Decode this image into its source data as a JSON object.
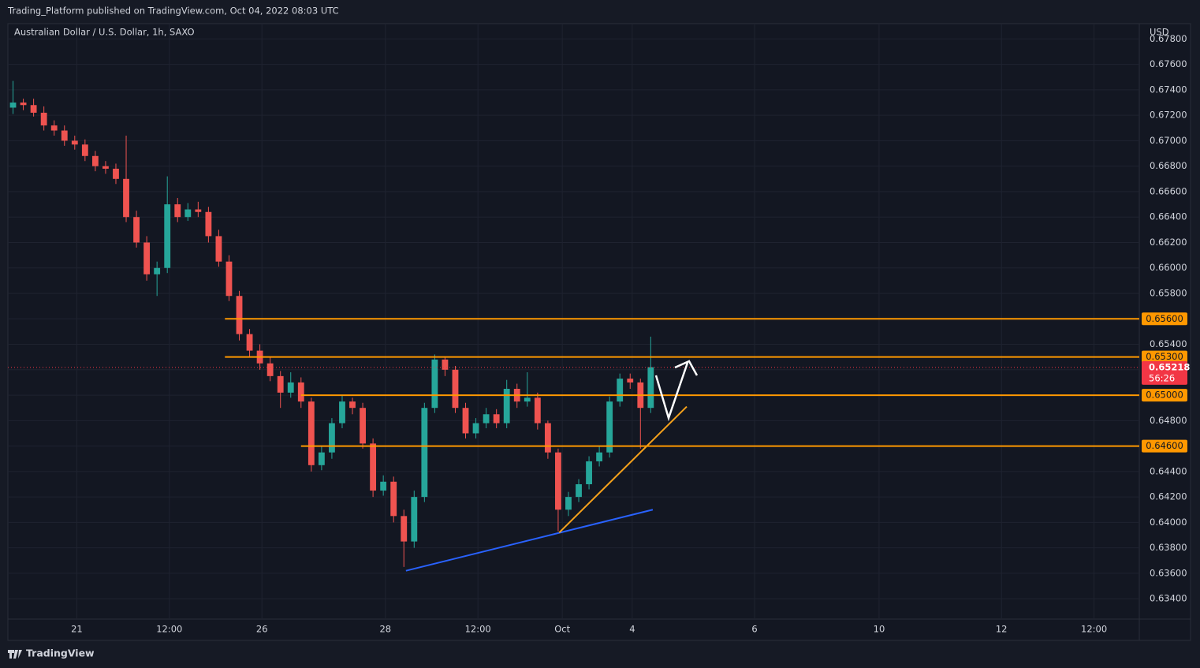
{
  "header": "Trading_Platform published on TradingView.com, Oct 04, 2022 08:03 UTC",
  "footer": "TradingView",
  "chart_data": {
    "type": "candlestick",
    "title": "Australian Dollar / U.S. Dollar, 1h, SAXO",
    "y_unit": "USD",
    "up_color": "#26a69a",
    "down_color": "#ef5350",
    "grid": true,
    "x": [
      0,
      1,
      2,
      3,
      4,
      5,
      6,
      7,
      8,
      9,
      10,
      11,
      12,
      13,
      14,
      15,
      16,
      17,
      18,
      19,
      20,
      21,
      22,
      23,
      24,
      25,
      26,
      27,
      28,
      29,
      30,
      31,
      32,
      33,
      34,
      35,
      36,
      37,
      38,
      39,
      40,
      41,
      42,
      43,
      44,
      45,
      46,
      47,
      48,
      49,
      50,
      51,
      52,
      53,
      54,
      55,
      56,
      57,
      58,
      59,
      60,
      61,
      62
    ],
    "open": [
      0.6726,
      0.673,
      0.6728,
      0.6722,
      0.6712,
      0.6708,
      0.67,
      0.6697,
      0.6688,
      0.668,
      0.6678,
      0.667,
      0.664,
      0.662,
      0.6595,
      0.66,
      0.665,
      0.664,
      0.6646,
      0.6644,
      0.6625,
      0.6605,
      0.6578,
      0.6548,
      0.6535,
      0.6525,
      0.6515,
      0.6502,
      0.651,
      0.6495,
      0.6445,
      0.6455,
      0.6478,
      0.6495,
      0.649,
      0.6462,
      0.6425,
      0.6432,
      0.6405,
      0.6385,
      0.642,
      0.649,
      0.6528,
      0.652,
      0.649,
      0.647,
      0.6478,
      0.6485,
      0.6478,
      0.6505,
      0.6495,
      0.6498,
      0.6478,
      0.6455,
      0.641,
      0.642,
      0.643,
      0.6448,
      0.6455,
      0.6495,
      0.6513,
      0.651,
      0.649
    ],
    "high": [
      0.6747,
      0.6733,
      0.6733,
      0.6727,
      0.6716,
      0.6712,
      0.6704,
      0.6701,
      0.6692,
      0.6684,
      0.6682,
      0.6704,
      0.6645,
      0.6625,
      0.6605,
      0.6672,
      0.6655,
      0.6651,
      0.6652,
      0.6648,
      0.663,
      0.661,
      0.6582,
      0.6552,
      0.654,
      0.653,
      0.6519,
      0.6518,
      0.6514,
      0.6498,
      0.646,
      0.6482,
      0.65,
      0.6498,
      0.6494,
      0.6466,
      0.6437,
      0.6436,
      0.641,
      0.6425,
      0.6494,
      0.6532,
      0.653,
      0.6523,
      0.6494,
      0.6482,
      0.649,
      0.6489,
      0.6512,
      0.6509,
      0.6518,
      0.6502,
      0.648,
      0.6458,
      0.6424,
      0.6434,
      0.6452,
      0.646,
      0.6499,
      0.6517,
      0.6517,
      0.6513,
      0.6546
    ],
    "low": [
      0.6721,
      0.6724,
      0.6719,
      0.6708,
      0.6704,
      0.6696,
      0.6693,
      0.6684,
      0.6676,
      0.6674,
      0.6666,
      0.6636,
      0.6616,
      0.659,
      0.6578,
      0.6596,
      0.6636,
      0.6637,
      0.664,
      0.662,
      0.6601,
      0.6574,
      0.6543,
      0.653,
      0.652,
      0.6511,
      0.649,
      0.6498,
      0.649,
      0.644,
      0.6441,
      0.645,
      0.6474,
      0.6485,
      0.6458,
      0.642,
      0.6421,
      0.64,
      0.6365,
      0.638,
      0.6416,
      0.6486,
      0.6515,
      0.6486,
      0.6466,
      0.6466,
      0.6474,
      0.6474,
      0.6474,
      0.649,
      0.6491,
      0.6473,
      0.645,
      0.6393,
      0.6405,
      0.6416,
      0.6426,
      0.6444,
      0.6451,
      0.6491,
      0.6505,
      0.6458,
      0.6486
    ],
    "close": [
      0.673,
      0.6728,
      0.6722,
      0.6712,
      0.6708,
      0.67,
      0.6697,
      0.6688,
      0.668,
      0.6678,
      0.667,
      0.664,
      0.662,
      0.6595,
      0.66,
      0.665,
      0.664,
      0.6646,
      0.6644,
      0.6625,
      0.6605,
      0.6578,
      0.6548,
      0.6535,
      0.6525,
      0.6515,
      0.6502,
      0.651,
      0.6495,
      0.6445,
      0.6455,
      0.6478,
      0.6495,
      0.649,
      0.6462,
      0.6425,
      0.6432,
      0.6405,
      0.6385,
      0.642,
      0.649,
      0.6528,
      0.652,
      0.649,
      0.647,
      0.6478,
      0.6485,
      0.6478,
      0.6505,
      0.6495,
      0.6498,
      0.6478,
      0.6455,
      0.641,
      0.642,
      0.643,
      0.6448,
      0.6455,
      0.6495,
      0.6513,
      0.651,
      0.649,
      0.6522
    ],
    "xlim": [
      0,
      110
    ],
    "xticks": [
      {
        "value": 6.7,
        "label": "21"
      },
      {
        "value": 15.7,
        "label": "12:00"
      },
      {
        "value": 24.7,
        "label": "26"
      },
      {
        "value": 36.7,
        "label": "28"
      },
      {
        "value": 45.7,
        "label": "12:00"
      },
      {
        "value": 53.9,
        "label": "Oct"
      },
      {
        "value": 60.7,
        "label": "4"
      },
      {
        "value": 72.6,
        "label": "6"
      },
      {
        "value": 84.7,
        "label": "10"
      },
      {
        "value": 96.6,
        "label": "12"
      },
      {
        "value": 105.6,
        "label": "12:00"
      }
    ],
    "ylim": [
      0.6324,
      0.6792
    ],
    "yticks": [
      {
        "value": 0.634,
        "label": "0.63400"
      },
      {
        "value": 0.636,
        "label": "0.63600"
      },
      {
        "value": 0.638,
        "label": "0.63800"
      },
      {
        "value": 0.64,
        "label": "0.64000"
      },
      {
        "value": 0.642,
        "label": "0.64200"
      },
      {
        "value": 0.644,
        "label": "0.64400"
      },
      {
        "value": 0.646,
        "label": "0.64600"
      },
      {
        "value": 0.648,
        "label": "0.64800"
      },
      {
        "value": 0.65,
        "label": "0.65000"
      },
      {
        "value": 0.652,
        "label": "0.65200"
      },
      {
        "value": 0.654,
        "label": "0.65400"
      },
      {
        "value": 0.656,
        "label": "0.65600"
      },
      {
        "value": 0.658,
        "label": "0.65800"
      },
      {
        "value": 0.66,
        "label": "0.66000"
      },
      {
        "value": 0.662,
        "label": "0.66200"
      },
      {
        "value": 0.664,
        "label": "0.66400"
      },
      {
        "value": 0.666,
        "label": "0.66600"
      },
      {
        "value": 0.668,
        "label": "0.66800"
      },
      {
        "value": 0.67,
        "label": "0.67000"
      },
      {
        "value": 0.672,
        "label": "0.67200"
      },
      {
        "value": 0.674,
        "label": "0.67400"
      },
      {
        "value": 0.676,
        "label": "0.67600"
      },
      {
        "value": 0.678,
        "label": "0.67800"
      }
    ],
    "levels": [
      {
        "value": 0.656,
        "label": "0.65600",
        "start": 21.1,
        "color": "#ff9800"
      },
      {
        "value": 0.653,
        "label": "0.65300",
        "start": 21.1,
        "color": "#ff9800"
      },
      {
        "value": 0.65,
        "label": "0.65000",
        "start": 28.5,
        "color": "#ff9800"
      },
      {
        "value": 0.646,
        "label": "0.64600",
        "start": 28.5,
        "color": "#ff9800"
      }
    ],
    "last_price": {
      "value": 0.65218,
      "label": "0.65218",
      "countdown": "56:26",
      "color": "#f23645"
    },
    "trendlines": [
      {
        "color": "#2962ff",
        "x": [
          38.7,
          62.7
        ],
        "y": [
          0.6362,
          0.641
        ]
      },
      {
        "color": "#f7a21b",
        "x": [
          53.6,
          66.0
        ],
        "y": [
          0.6392,
          0.6491
        ]
      }
    ]
  }
}
